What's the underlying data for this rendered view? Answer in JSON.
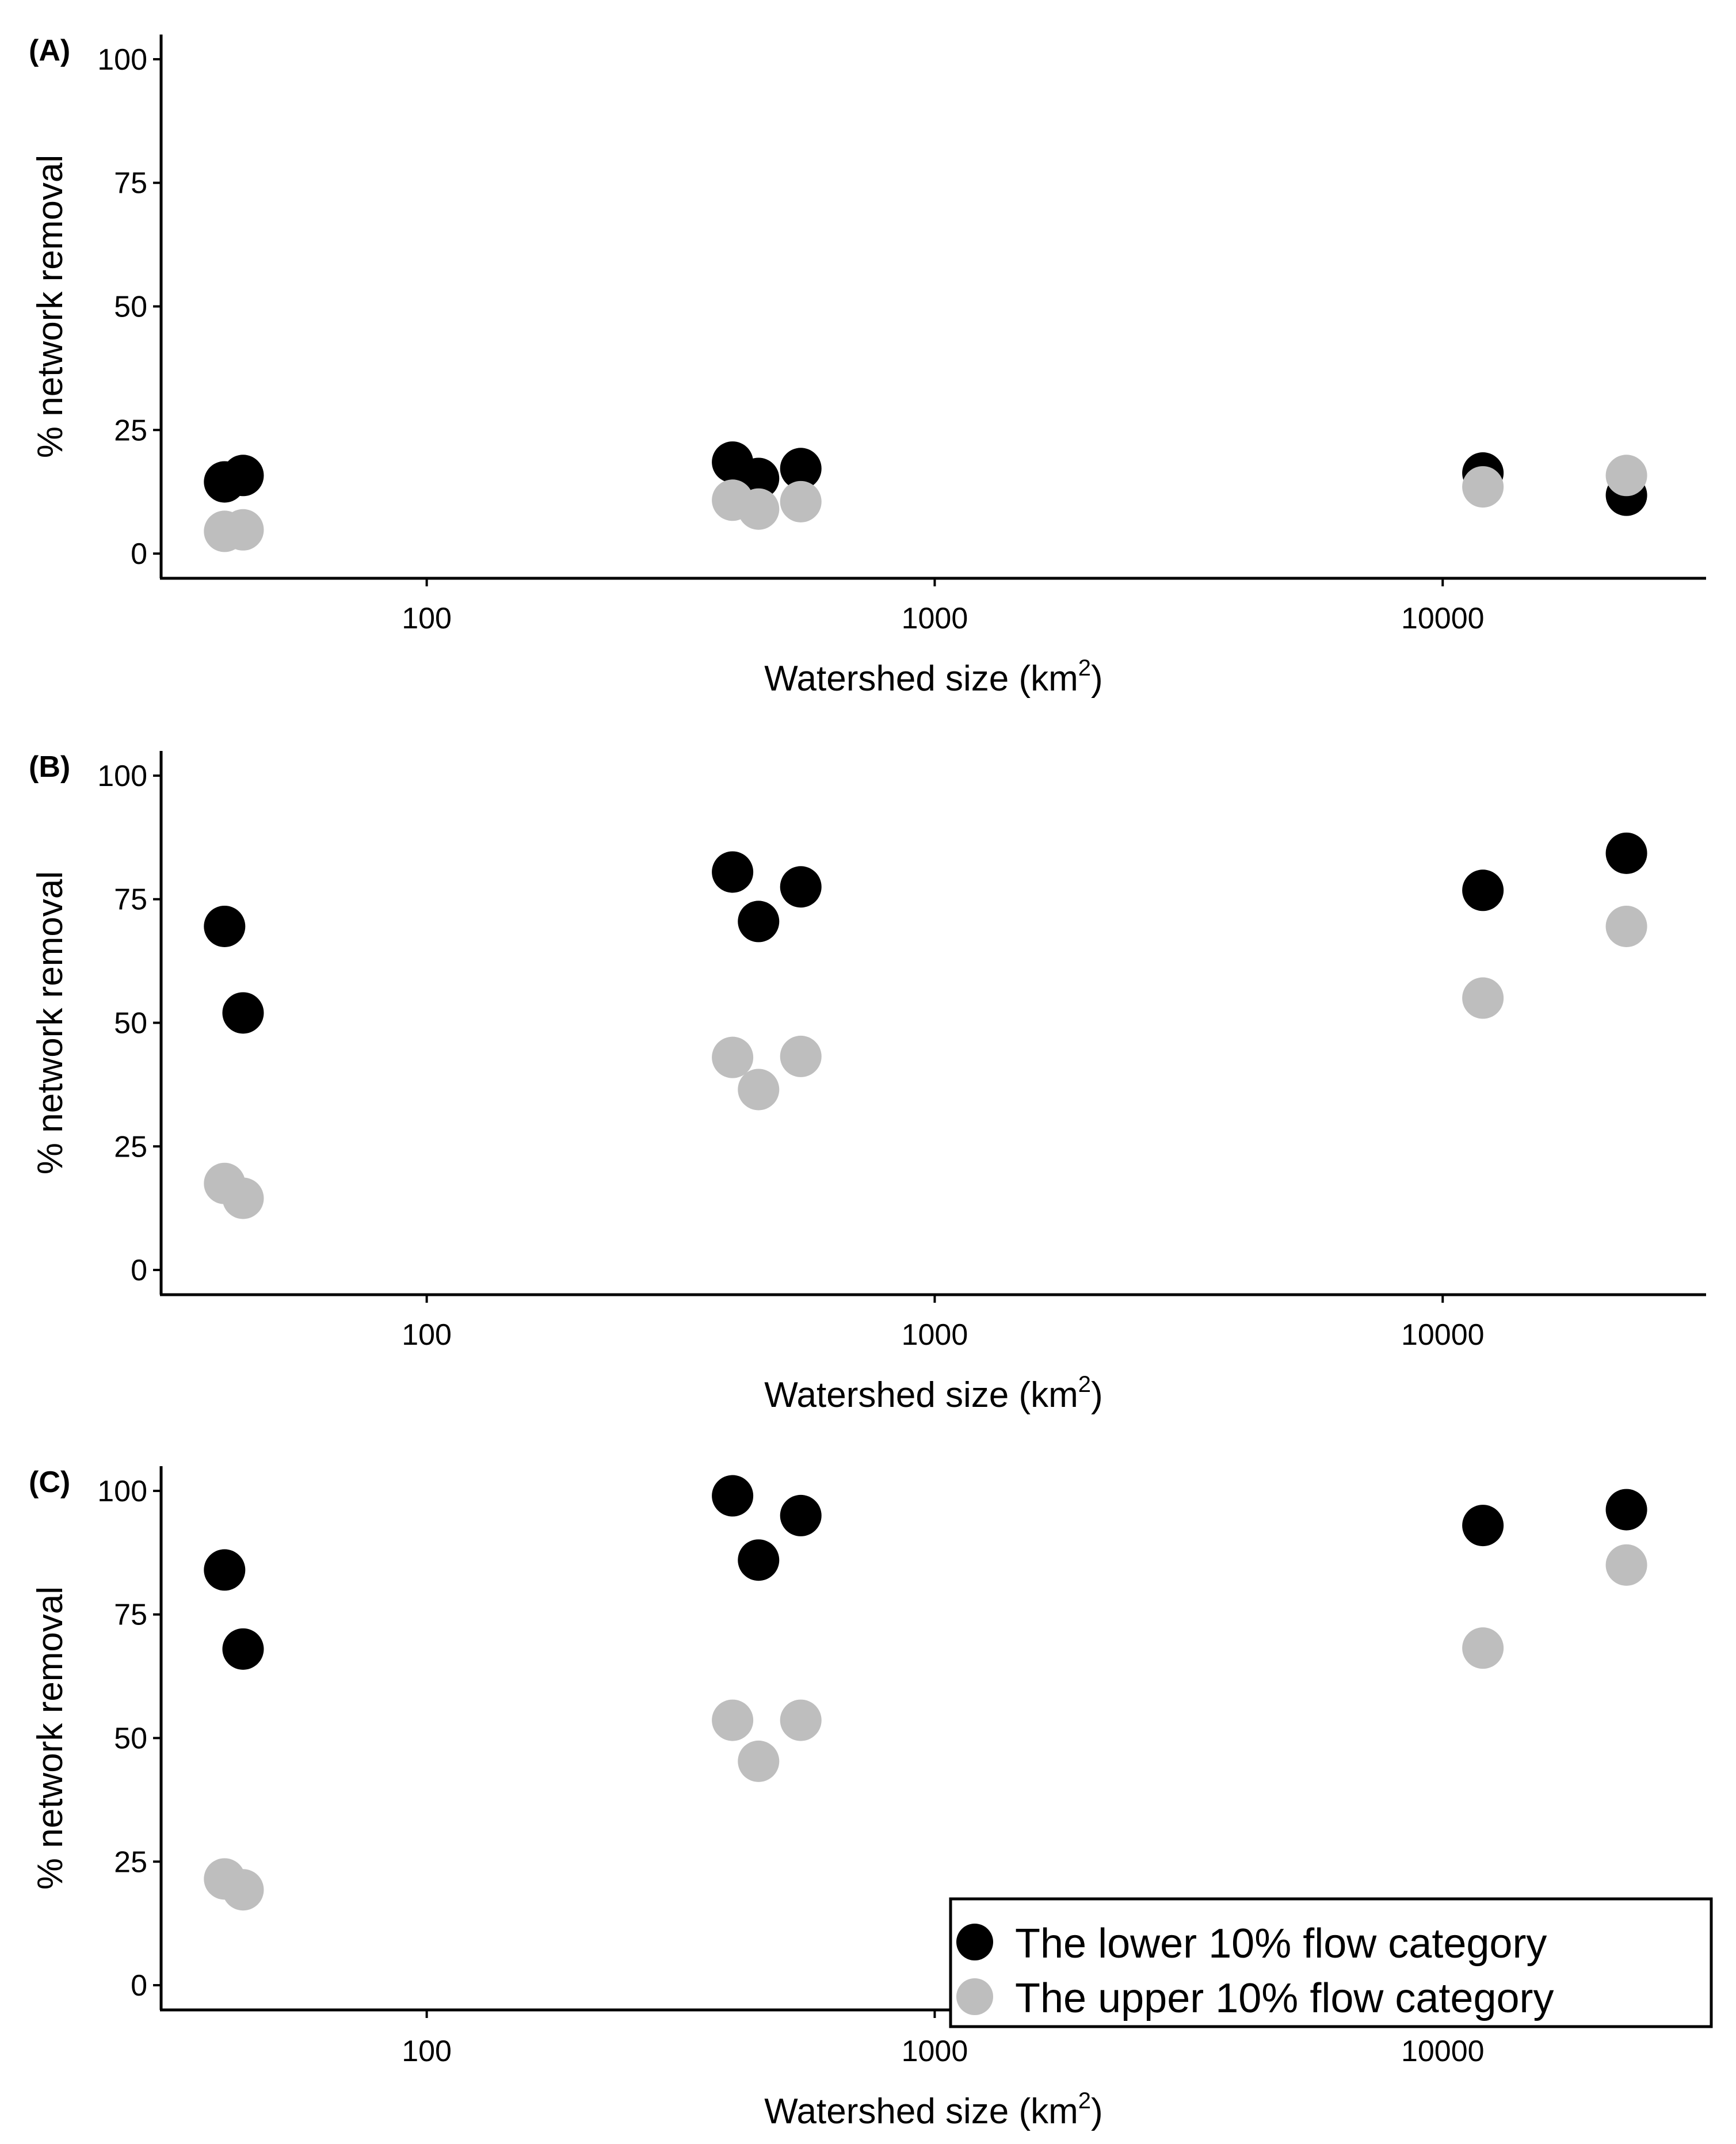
{
  "figure": {
    "background": "#ffffff"
  },
  "colors": {
    "lower": "#000000",
    "upper": "#bebebe",
    "axis": "#000000",
    "legend_border": "#000000"
  },
  "legend": {
    "entries": [
      {
        "label": "The lower 10% flow category",
        "series": "lower"
      },
      {
        "label": "The upper 10% flow category",
        "series": "upper"
      }
    ],
    "placement": "bottom-right of panel C"
  },
  "chart_data": [
    {
      "type": "scatter",
      "panel_label": "(A)",
      "title": "",
      "xlabel": "Watershed size (km",
      "xlabel_sup": "2",
      "xlabel_close": ")",
      "ylabel": "% network removal",
      "xscale": "log",
      "xlim": [
        30,
        33000
      ],
      "ylim": [
        -5,
        105
      ],
      "x_ticks": [
        100,
        1000,
        10000
      ],
      "x_tick_labels": [
        "100",
        "1000",
        "10000"
      ],
      "y_ticks": [
        0,
        25,
        50,
        75,
        100
      ],
      "y_tick_labels": [
        "0",
        "25",
        "50",
        "75",
        "100"
      ],
      "grid": false,
      "series": [
        {
          "name": "The lower 10% flow category",
          "key": "lower",
          "x": [
            40,
            43.5,
            400,
            450,
            545,
            12000,
            23000
          ],
          "y": [
            14.5,
            15.8,
            18.5,
            15.2,
            17.2,
            16.3,
            11.8
          ]
        },
        {
          "name": "The upper 10% flow category",
          "key": "upper",
          "x": [
            40,
            43.5,
            400,
            450,
            545,
            12000,
            23000
          ],
          "y": [
            4.5,
            4.8,
            10.8,
            9,
            10.5,
            13.5,
            15.8
          ]
        }
      ]
    },
    {
      "type": "scatter",
      "panel_label": "(B)",
      "title": "",
      "xlabel": "Watershed size (km",
      "xlabel_sup": "2",
      "xlabel_close": ")",
      "ylabel": "% network removal",
      "xscale": "log",
      "xlim": [
        30,
        33000
      ],
      "ylim": [
        -5,
        105
      ],
      "x_ticks": [
        100,
        1000,
        10000
      ],
      "x_tick_labels": [
        "100",
        "1000",
        "10000"
      ],
      "y_ticks": [
        0,
        25,
        50,
        75,
        100
      ],
      "y_tick_labels": [
        "0",
        "25",
        "50",
        "75",
        "100"
      ],
      "grid": false,
      "series": [
        {
          "name": "The lower 10% flow category",
          "key": "lower",
          "x": [
            40,
            43.5,
            400,
            450,
            545,
            12000,
            23000
          ],
          "y": [
            69.5,
            52,
            80.5,
            70.5,
            77.5,
            76.8,
            84.3
          ]
        },
        {
          "name": "The upper 10% flow category",
          "key": "upper",
          "x": [
            40,
            43.5,
            400,
            450,
            545,
            12000,
            23000
          ],
          "y": [
            17.5,
            14.5,
            43,
            36.5,
            43.2,
            55,
            69.5
          ]
        }
      ]
    },
    {
      "type": "scatter",
      "panel_label": "(C)",
      "title": "",
      "xlabel": "Watershed size (km",
      "xlabel_sup": "2",
      "xlabel_close": ")",
      "ylabel": "% network removal",
      "xscale": "log",
      "xlim": [
        30,
        33000
      ],
      "ylim": [
        -5,
        105
      ],
      "x_ticks": [
        100,
        1000,
        10000
      ],
      "x_tick_labels": [
        "100",
        "1000",
        "10000"
      ],
      "y_ticks": [
        0,
        25,
        50,
        75,
        100
      ],
      "y_tick_labels": [
        "0",
        "25",
        "50",
        "75",
        "100"
      ],
      "grid": false,
      "series": [
        {
          "name": "The lower 10% flow category",
          "key": "lower",
          "x": [
            40,
            43.5,
            400,
            450,
            545,
            12000,
            23000
          ],
          "y": [
            84,
            68,
            99,
            86,
            95,
            93,
            96.2
          ]
        },
        {
          "name": "The upper 10% flow category",
          "key": "upper",
          "x": [
            40,
            43.5,
            400,
            450,
            545,
            12000,
            23000
          ],
          "y": [
            21.5,
            19.3,
            53.6,
            45.3,
            53.6,
            68.2,
            85
          ]
        }
      ]
    }
  ]
}
